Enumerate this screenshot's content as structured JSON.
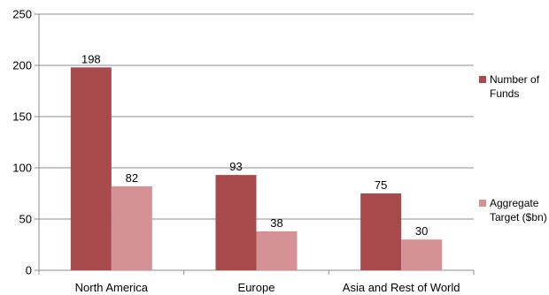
{
  "chart_data": {
    "type": "bar",
    "categories": [
      "North America",
      "Europe",
      "Asia and Rest of World"
    ],
    "series": [
      {
        "name": "Number of Funds",
        "name_lines": [
          "Number of",
          "Funds"
        ],
        "values": [
          198,
          93,
          75
        ],
        "color": "#A84A4C"
      },
      {
        "name": "Aggregate Target ($bn)",
        "name_lines": [
          "Aggregate",
          "Target ($bn)"
        ],
        "values": [
          82,
          38,
          30
        ],
        "color": "#D59294"
      }
    ],
    "ylim": [
      0,
      250
    ],
    "yticks": [
      0,
      50,
      100,
      150,
      200,
      250
    ],
    "grid": true,
    "legend": "right",
    "title": "",
    "xlabel": "",
    "ylabel": ""
  }
}
